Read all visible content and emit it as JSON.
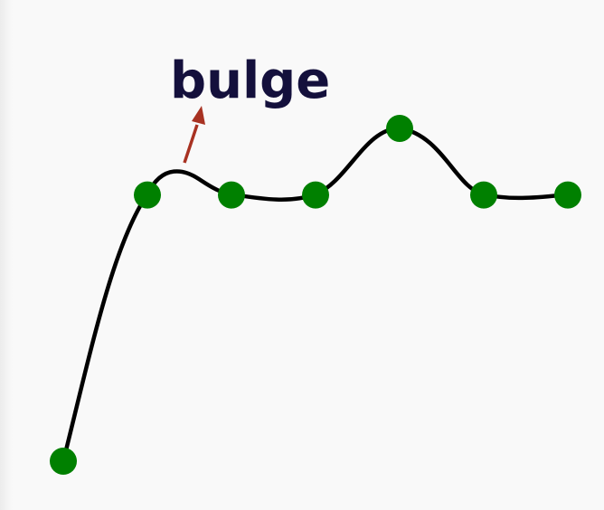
{
  "annotation": {
    "label": "bulge"
  },
  "colors": {
    "background": "#f9f9f9",
    "curve": "#000000",
    "points": "#008000",
    "arrow": "#a83222",
    "label": "#14103c"
  },
  "points": [
    {
      "x": 0,
      "y": 0
    },
    {
      "x": 1,
      "y": 3.2
    },
    {
      "x": 2,
      "y": 3.2
    },
    {
      "x": 3,
      "y": 3.2
    },
    {
      "x": 4,
      "y": 4.0
    },
    {
      "x": 5,
      "y": 3.2
    },
    {
      "x": 6,
      "y": 3.2
    }
  ]
}
